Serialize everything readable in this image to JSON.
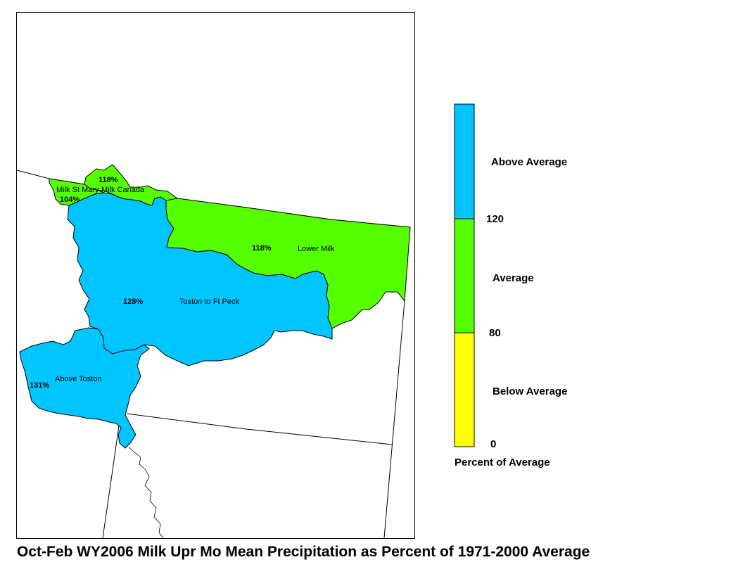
{
  "title": "Oct-Feb WY2006 Milk Upr Mo Mean Precipitation as Percent of 1971-2000 Average",
  "colors": {
    "above": "#00c5ff",
    "average": "#55ff00",
    "below": "#ffff00",
    "border": "#000000",
    "background": "#ffffff"
  },
  "regions": [
    {
      "name": "Milk St Mary",
      "percent": "104%",
      "category": "average"
    },
    {
      "name": "Milk Canada",
      "percent": "118%",
      "category": "average"
    },
    {
      "name": "Lower Milk",
      "percent": "118%",
      "category": "average"
    },
    {
      "name": "Toston to Ft Peck",
      "percent": "128%",
      "category": "above"
    },
    {
      "name": "Above Toston",
      "percent": "131%",
      "category": "above"
    }
  ],
  "legend": {
    "title": "Percent of Average",
    "classes": [
      {
        "label": "Above Average",
        "color": "#00c5ff"
      },
      {
        "label": "Average",
        "color": "#55ff00"
      },
      {
        "label": "Below Average",
        "color": "#ffff00"
      }
    ],
    "breaks": [
      "120",
      "80",
      "0"
    ]
  }
}
